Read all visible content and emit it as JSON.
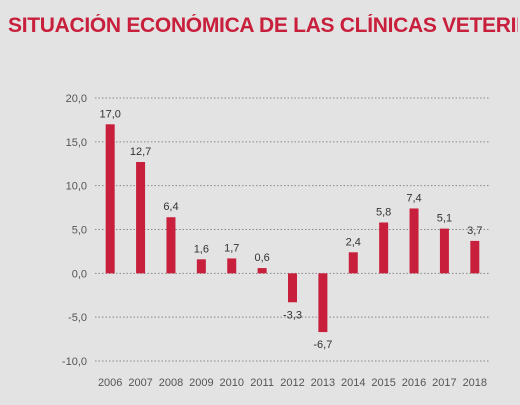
{
  "title": "SITUACIÓN ECONÓMICA DE LAS CLÍNICAS VETERINARIAS",
  "colors": {
    "bar": "#c8203c",
    "title": "#c8203c",
    "background": "#e3e3e3",
    "grid": "#888888"
  },
  "chart_data": {
    "type": "bar",
    "categories": [
      "2006",
      "2007",
      "2008",
      "2009",
      "2010",
      "2011",
      "2012",
      "2013",
      "2014",
      "2015",
      "2016",
      "2017",
      "2018"
    ],
    "values": [
      17.0,
      12.7,
      6.4,
      1.6,
      1.7,
      0.6,
      -3.3,
      -6.7,
      2.4,
      5.8,
      7.4,
      5.1,
      3.7
    ],
    "value_labels": [
      "17,0",
      "12,7",
      "6,4",
      "1,6",
      "1,7",
      "0,6",
      "-3,3",
      "-6,7",
      "2,4",
      "5,8",
      "7,4",
      "5,1",
      "3,7"
    ],
    "y_ticks": [
      20.0,
      15.0,
      10.0,
      5.0,
      0.0,
      -5.0,
      -10.0
    ],
    "y_tick_labels": [
      "20,0",
      "15,0",
      "10,0",
      "5,0",
      "0,0",
      "-5,0",
      "-10,0"
    ],
    "ylim": [
      -10,
      20
    ],
    "grid": true,
    "grid_style": "dotted",
    "title": "SITUACIÓN ECONÓMICA DE LAS CLÍNICAS VETERINARIAS",
    "xlabel": "",
    "ylabel": ""
  }
}
